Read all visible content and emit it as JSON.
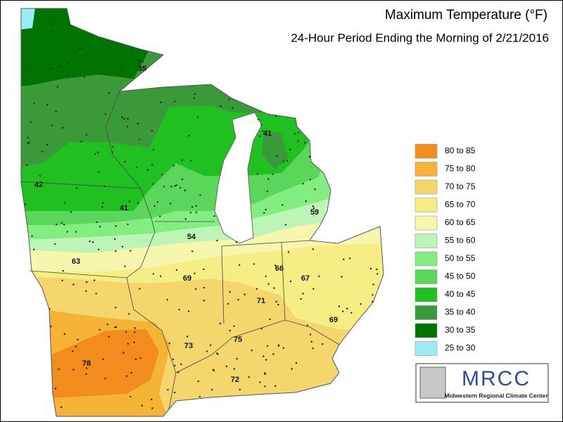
{
  "map": {
    "title": "Maximum Temperature (°F)",
    "subtitle": "24-Hour Period Ending the Morning of 2/21/2016",
    "legend": [
      {
        "label": "80 to 85",
        "color": "#f28c1c"
      },
      {
        "label": "75 to 80",
        "color": "#f6b436"
      },
      {
        "label": "70 to 75",
        "color": "#f4d66c"
      },
      {
        "label": "65 to 70",
        "color": "#f6ee84"
      },
      {
        "label": "60 to 65",
        "color": "#f6f6ae"
      },
      {
        "label": "55 to 60",
        "color": "#bdf5b6"
      },
      {
        "label": "50 to 55",
        "color": "#82ee82"
      },
      {
        "label": "45 to 50",
        "color": "#5ad65a"
      },
      {
        "label": "40 to 45",
        "color": "#20c020"
      },
      {
        "label": "35 to 40",
        "color": "#3a9a3a"
      },
      {
        "label": "30 to 35",
        "color": "#007400"
      },
      {
        "label": "25 to 30",
        "color": "#9cecf6"
      }
    ],
    "station_labels": [
      35,
      42,
      41,
      41,
      54,
      59,
      63,
      69,
      66,
      67,
      71,
      69,
      73,
      75,
      78,
      72
    ],
    "logo": {
      "name": "MRCC",
      "caption": "Midwestern Regional Climate Center"
    }
  }
}
